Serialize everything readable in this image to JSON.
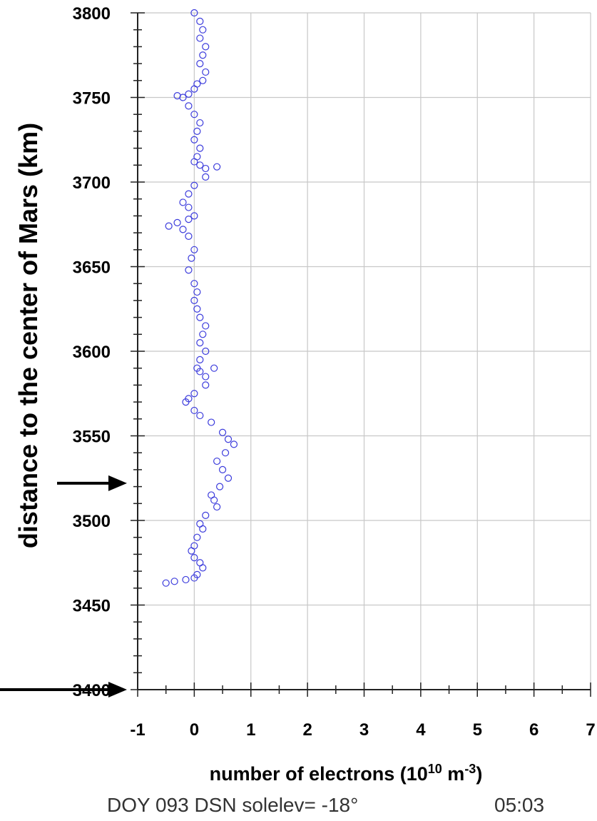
{
  "chart_data": {
    "type": "scatter",
    "xlabel": "number of electrons (10",
    "xlabel_exp1": "10",
    "xlabel_unit": "m",
    "xlabel_exp2": "-3",
    "ylabel": "distance to the center of Mars (km)",
    "footer": "DOY 093 DSN solelev= -18°",
    "footer_time": "05:03",
    "xlim": [
      -1,
      7
    ],
    "ylim": [
      3400,
      3800
    ],
    "x_ticks": [
      "-1",
      "0",
      "1",
      "2",
      "3",
      "4",
      "5",
      "6",
      "7"
    ],
    "y_ticks": [
      "3400",
      "3450",
      "3500",
      "3550",
      "3600",
      "3650",
      "3700",
      "3750",
      "3800"
    ],
    "grid": true,
    "marker": "open-circle",
    "series_color": "#3b3bdc",
    "arrows_at_y": [
      3522,
      3400
    ],
    "series": [
      {
        "x": [
          0.0,
          0.1,
          0.15,
          0.1,
          0.2,
          0.15,
          0.1,
          0.2,
          0.15,
          0.05,
          0.0,
          -0.1,
          -0.2,
          -0.3,
          -0.1,
          0.0,
          0.1,
          0.05,
          0.0,
          0.1,
          0.05,
          0.0,
          0.1,
          0.2,
          0.4,
          0.2,
          0.0,
          -0.1,
          -0.2,
          -0.1,
          0.0,
          -0.1,
          -0.3,
          -0.45,
          -0.2,
          -0.1,
          0.0,
          -0.05,
          -0.1,
          0.0,
          0.05,
          0.0,
          0.05,
          0.1,
          0.2,
          0.15,
          0.1,
          0.2,
          0.1,
          0.05,
          0.1,
          0.2,
          0.35,
          0.2,
          0.0,
          -0.1,
          -0.15,
          0.0,
          0.1,
          0.3,
          0.5,
          0.6,
          0.7,
          0.55,
          0.4,
          0.5,
          0.6,
          0.45,
          0.3,
          0.35,
          0.4,
          0.2,
          0.1,
          0.15,
          0.05,
          0.0,
          -0.05,
          0.0,
          0.1,
          0.15,
          0.05,
          0.0,
          -0.15,
          -0.35,
          -0.5
        ],
        "y": [
          3800,
          3795,
          3790,
          3785,
          3780,
          3775,
          3770,
          3765,
          3760,
          3758,
          3755,
          3752,
          3750,
          3751,
          3745,
          3740,
          3735,
          3730,
          3725,
          3720,
          3715,
          3712,
          3710,
          3708,
          3709,
          3703,
          3698,
          3693,
          3688,
          3685,
          3680,
          3678,
          3676,
          3674,
          3672,
          3668,
          3660,
          3655,
          3648,
          3640,
          3635,
          3630,
          3625,
          3620,
          3615,
          3610,
          3605,
          3600,
          3595,
          3590,
          3588,
          3585,
          3590,
          3580,
          3575,
          3572,
          3570,
          3565,
          3562,
          3558,
          3552,
          3548,
          3545,
          3540,
          3535,
          3530,
          3525,
          3520,
          3515,
          3512,
          3508,
          3503,
          3498,
          3495,
          3490,
          3485,
          3482,
          3478,
          3475,
          3472,
          3468,
          3466,
          3465,
          3464,
          3463
        ]
      }
    ]
  }
}
